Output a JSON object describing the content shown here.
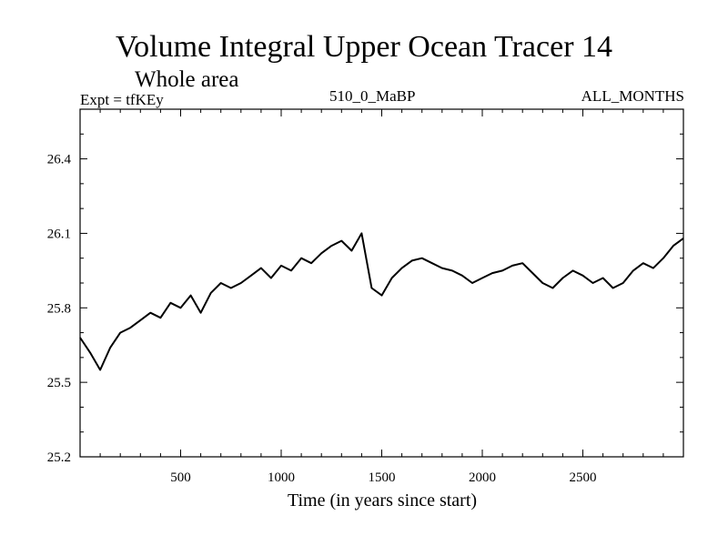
{
  "header": {
    "title": "Volume Integral Upper Ocean Tracer 14",
    "subtitle": "Whole area",
    "experiment": "Expt = tfKEy",
    "run_label": "510_0_MaBP",
    "period": "ALL_MONTHS"
  },
  "chart_data": {
    "type": "line",
    "title": "Volume Integral Upper Ocean Tracer 14",
    "subtitle": "Whole area",
    "xlabel": "Time (in years since start)",
    "ylabel": "",
    "xlim": [
      0,
      3000
    ],
    "ylim": [
      25.2,
      26.6
    ],
    "x_ticks": [
      500,
      1000,
      1500,
      2000,
      2500
    ],
    "x_tick_labels": [
      "500",
      "1000",
      "1500",
      "2000",
      "2500"
    ],
    "y_ticks": [
      25.2,
      25.5,
      25.8,
      26.1,
      26.4
    ],
    "y_tick_labels": [
      "25.2",
      "25.5",
      "25.8",
      "26.1",
      "26.4"
    ],
    "grid": false,
    "legend": "none",
    "line_color": "#000000",
    "series": [
      {
        "x": [
          0,
          50,
          100,
          150,
          200,
          250,
          300,
          350,
          400,
          450,
          500,
          550,
          600,
          650,
          700,
          750,
          800,
          850,
          900,
          950,
          1000,
          1050,
          1100,
          1150,
          1200,
          1250,
          1300,
          1350,
          1400,
          1450,
          1500,
          1550,
          1600,
          1650,
          1700,
          1750,
          1800,
          1850,
          1900,
          1950,
          2000,
          2050,
          2100,
          2150,
          2200,
          2250,
          2300,
          2350,
          2400,
          2450,
          2500,
          2550,
          2600,
          2650,
          2700,
          2750,
          2800,
          2850,
          2900,
          2950,
          3000
        ],
        "values": [
          25.68,
          25.62,
          25.55,
          25.64,
          25.7,
          25.72,
          25.75,
          25.78,
          25.76,
          25.82,
          25.8,
          25.85,
          25.78,
          25.86,
          25.9,
          25.88,
          25.9,
          25.93,
          25.96,
          25.92,
          25.97,
          25.95,
          26.0,
          25.98,
          26.02,
          26.05,
          26.07,
          26.03,
          26.1,
          25.88,
          25.85,
          25.92,
          25.96,
          25.99,
          26.0,
          25.98,
          25.96,
          25.95,
          25.93,
          25.9,
          25.92,
          25.94,
          25.95,
          25.97,
          25.98,
          25.94,
          25.9,
          25.88,
          25.92,
          25.95,
          25.93,
          25.9,
          25.92,
          25.88,
          25.9,
          25.95,
          25.98,
          25.96,
          26.0,
          26.05,
          26.08
        ]
      }
    ]
  }
}
